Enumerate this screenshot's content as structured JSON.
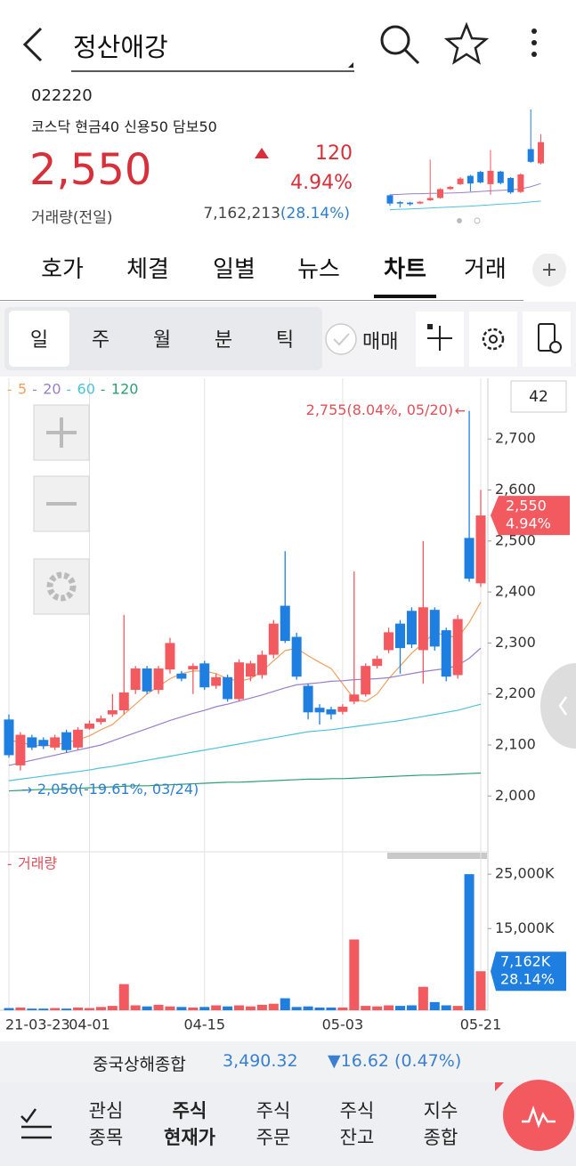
{
  "header": {
    "title": "정산애강"
  },
  "stock": {
    "code": "022220",
    "market_info": "코스닥 현금40 신용50 담보50",
    "price": "2,550",
    "change": "120",
    "change_pct": "4.94%",
    "volume_label": "거래량(전일)",
    "volume": "7,162,213",
    "volume_ratio": "(28.14%)"
  },
  "tabs": [
    "호가",
    "체결",
    "일별",
    "뉴스",
    "차트",
    "거래"
  ],
  "active_tab": 4,
  "periods": [
    "일",
    "주",
    "월",
    "분",
    "틱"
  ],
  "active_period": 0,
  "trade_toggle": "매매",
  "chart_data": {
    "type": "candlestick",
    "categories": [
      "21-03-23",
      null,
      null,
      null,
      null,
      null,
      null,
      "04-01",
      null,
      null,
      null,
      null,
      null,
      null,
      null,
      null,
      null,
      "04-15",
      null,
      null,
      null,
      null,
      null,
      null,
      null,
      null,
      null,
      null,
      null,
      "05-03",
      null,
      null,
      null,
      null,
      null,
      null,
      null,
      null,
      null,
      null,
      null,
      "05-21"
    ],
    "open": [
      2150,
      2060,
      2115,
      2110,
      2095,
      2125,
      2095,
      2132,
      2145,
      2160,
      2168,
      2208,
      2250,
      2208,
      2248,
      2240,
      2248,
      2260,
      2216,
      2233,
      2190,
      2234,
      2237,
      2277,
      2373,
      2312,
      2216,
      2173,
      2170,
      2165,
      2185,
      2199,
      2255,
      2286,
      2338,
      2363,
      2286,
      2365,
      2325,
      2237,
      2506,
      2417
    ],
    "high": [
      2160,
      2125,
      2120,
      2115,
      2120,
      2130,
      2135,
      2148,
      2158,
      2200,
      2355,
      2255,
      2255,
      2255,
      2310,
      2245,
      2260,
      2265,
      2240,
      2238,
      2268,
      2265,
      2285,
      2345,
      2480,
      2320,
      2220,
      2180,
      2175,
      2180,
      2440,
      2260,
      2275,
      2330,
      2345,
      2370,
      2500,
      2370,
      2330,
      2355,
      2755,
      2600
    ],
    "low": [
      2075,
      2050,
      2090,
      2092,
      2090,
      2085,
      2090,
      2130,
      2140,
      2155,
      2160,
      2200,
      2200,
      2200,
      2240,
      2225,
      2200,
      2208,
      2210,
      2185,
      2185,
      2225,
      2230,
      2270,
      2300,
      2228,
      2150,
      2140,
      2150,
      2160,
      2180,
      2195,
      2250,
      2280,
      2240,
      2290,
      2220,
      2285,
      2225,
      2230,
      2420,
      2410
    ],
    "close": [
      2080,
      2120,
      2095,
      2098,
      2115,
      2090,
      2130,
      2142,
      2152,
      2168,
      2203,
      2250,
      2205,
      2250,
      2300,
      2230,
      2255,
      2213,
      2233,
      2190,
      2262,
      2260,
      2277,
      2338,
      2304,
      2234,
      2164,
      2164,
      2160,
      2175,
      2199,
      2255,
      2269,
      2321,
      2290,
      2297,
      2370,
      2293,
      2234,
      2347,
      2426,
      2550
    ],
    "color_up": "#f25a5f",
    "color_down": "#1f7fe0",
    "ylim": [
      1915,
      2819
    ],
    "yticks": [
      {
        "value": 2000,
        "label": "2,000"
      },
      {
        "value": 2100,
        "label": "2,100"
      },
      {
        "value": 2200,
        "label": "2,200"
      },
      {
        "value": 2300,
        "label": "2,300"
      },
      {
        "value": 2400,
        "label": "2,400"
      },
      {
        "value": 2500,
        "label": "2,500"
      },
      {
        "value": 2600,
        "label": "2,600"
      },
      {
        "value": 2700,
        "label": "2,700"
      }
    ],
    "series": [
      {
        "name": "5",
        "color": "#f0a060",
        "values": [
          2110,
          2105,
          2100,
          2098,
          2100,
          2105,
          2110,
          2118,
          2130,
          2140,
          2160,
          2180,
          2200,
          2215,
          2230,
          2240,
          2245,
          2245,
          2240,
          2230,
          2225,
          2230,
          2245,
          2265,
          2285,
          2290,
          2275,
          2262,
          2250,
          2220,
          2190,
          2185,
          2200,
          2230,
          2255,
          2280,
          2300,
          2320,
          2315,
          2310,
          2340,
          2380
        ]
      },
      {
        "name": "20",
        "color": "#9a7ec9",
        "values": [
          2060,
          2065,
          2070,
          2075,
          2080,
          2085,
          2090,
          2095,
          2100,
          2108,
          2116,
          2124,
          2132,
          2140,
          2148,
          2155,
          2162,
          2168,
          2175,
          2180,
          2186,
          2192,
          2198,
          2205,
          2212,
          2218,
          2220,
          2222,
          2225,
          2226,
          2228,
          2229,
          2230,
          2232,
          2236,
          2240,
          2244,
          2247,
          2250,
          2256,
          2270,
          2290
        ]
      },
      {
        "name": "60",
        "color": "#4ec3d8",
        "values": [
          2030,
          2033,
          2036,
          2039,
          2042,
          2045,
          2048,
          2051,
          2055,
          2058,
          2062,
          2066,
          2070,
          2074,
          2078,
          2082,
          2086,
          2090,
          2094,
          2098,
          2102,
          2106,
          2110,
          2114,
          2118,
          2122,
          2126,
          2128,
          2130,
          2133,
          2136,
          2139,
          2142,
          2145,
          2148,
          2152,
          2156,
          2160,
          2164,
          2168,
          2174,
          2180
        ]
      },
      {
        "name": "120",
        "color": "#2aa070",
        "values": [
          2010,
          2011,
          2012,
          2013,
          2013,
          2014,
          2015,
          2016,
          2017,
          2018,
          2019,
          2020,
          2020,
          2021,
          2022,
          2023,
          2024,
          2025,
          2026,
          2027,
          2027,
          2028,
          2029,
          2030,
          2031,
          2032,
          2033,
          2033,
          2034,
          2034,
          2035,
          2036,
          2037,
          2038,
          2039,
          2040,
          2041,
          2041,
          2042,
          2043,
          2044,
          2045
        ]
      }
    ],
    "high_label": "2,755(8.04%, 05/20)",
    "low_label": "2,050(-19.61%, 03/24)",
    "last_label": {
      "price": "2,550",
      "change": "4.94%"
    },
    "candle_count": 42,
    "volume": {
      "label": "거래량",
      "values": [
        400,
        500,
        300,
        300,
        400,
        300,
        500,
        400,
        600,
        800,
        4800,
        900,
        700,
        1000,
        700,
        600,
        500,
        600,
        900,
        700,
        900,
        700,
        1000,
        1200,
        2200,
        600,
        700,
        500,
        500,
        500,
        13000,
        800,
        700,
        900,
        800,
        900,
        4300,
        1500,
        900,
        800,
        25000,
        7162
      ],
      "ylim": [
        0,
        27800
      ],
      "yticks": [
        {
          "value": 15000,
          "label": "15,000K"
        },
        {
          "value": 25000,
          "label": "25,000K"
        }
      ],
      "last_label": {
        "volume": "7,162K",
        "ratio": "28.14%"
      }
    }
  },
  "index_bar": {
    "name": "중국상해종합",
    "value": "3,490.32",
    "change": "▼16.62 (0.47%)"
  },
  "bottom_nav": [
    [
      "관심",
      "종목"
    ],
    [
      "주식",
      "현재가"
    ],
    [
      "주식",
      "주문"
    ],
    [
      "주식",
      "잔고"
    ],
    [
      "지수",
      "종합"
    ]
  ],
  "active_nav": 1
}
